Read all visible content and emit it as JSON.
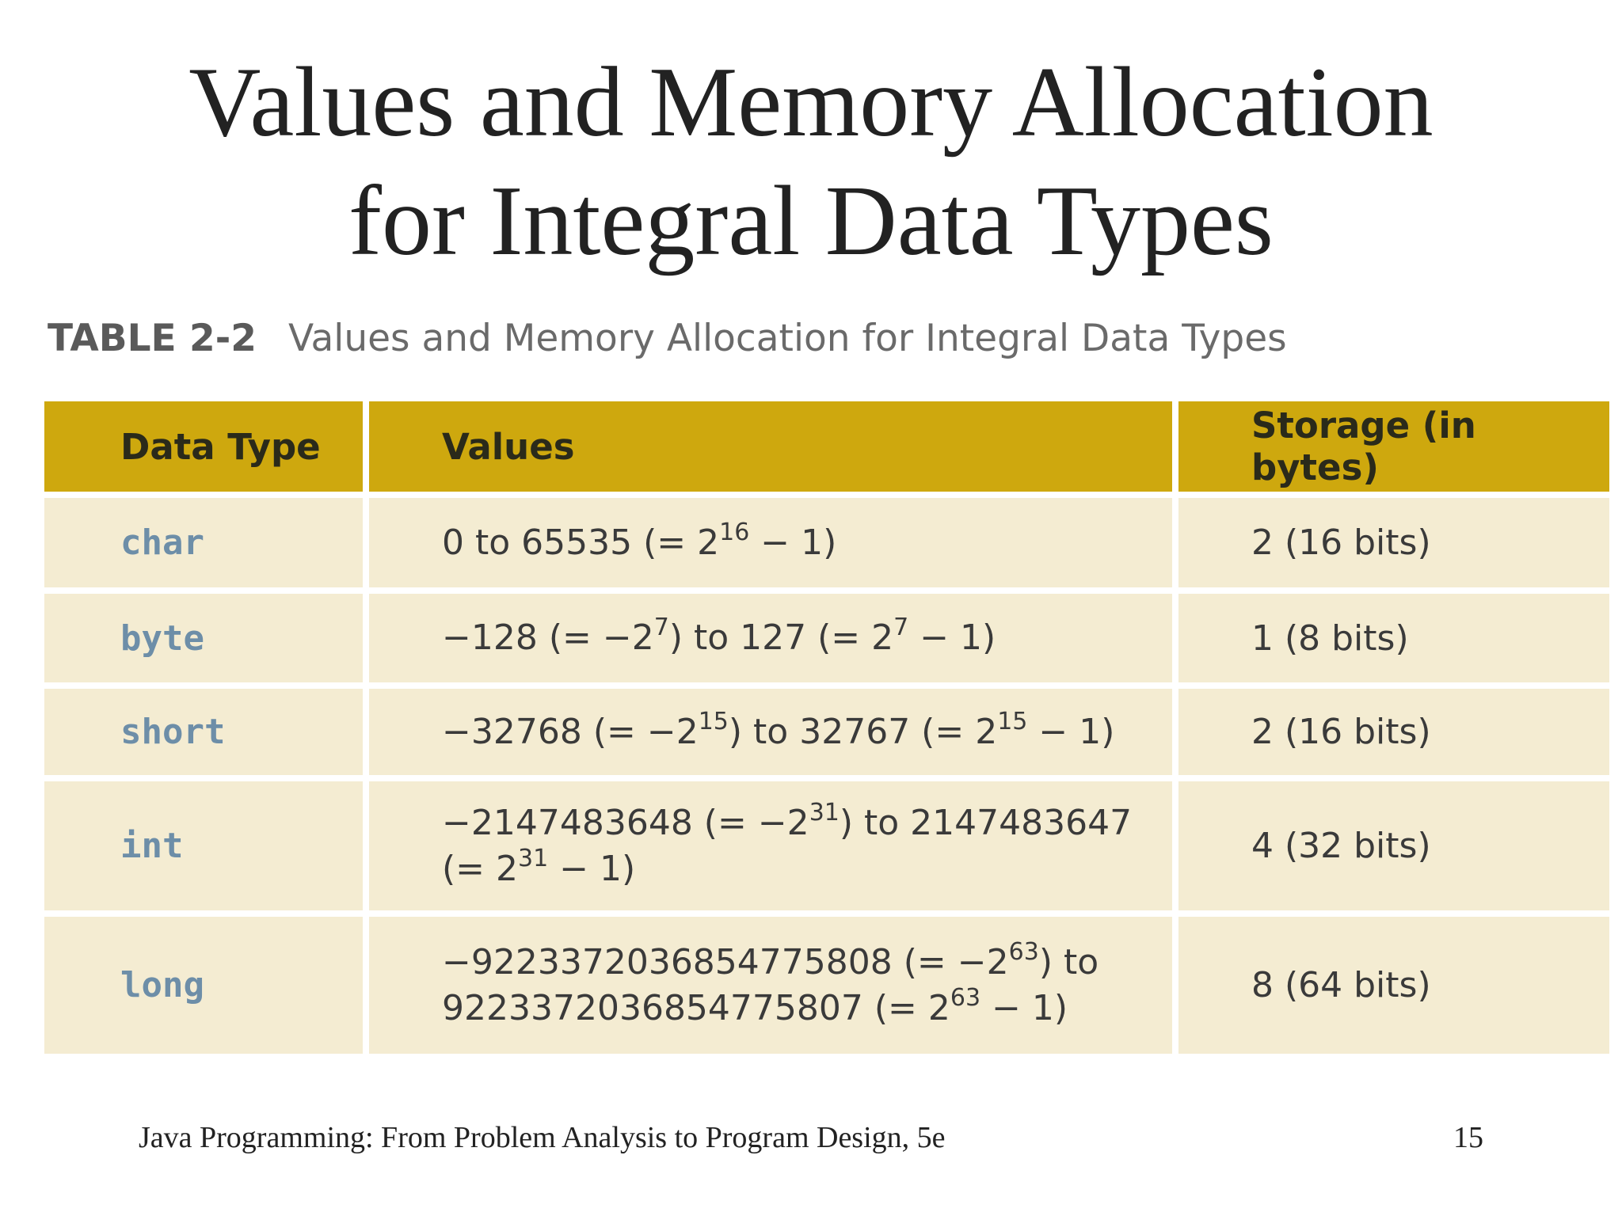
{
  "title": {
    "line1": "Values and Memory Allocation",
    "line2": "for Integral Data Types"
  },
  "caption": {
    "label": "TABLE 2-2",
    "text": "Values and Memory Allocation for Integral Data Types"
  },
  "table": {
    "headers": [
      "Data Type",
      "Values",
      "Storage (in bytes)"
    ],
    "rows": [
      {
        "type": "char",
        "values": [
          [
            {
              "t": "0 to 65535 (= 2"
            },
            {
              "sup": "16"
            },
            {
              "t": " − 1)"
            }
          ]
        ],
        "storage": "2 (16 bits)"
      },
      {
        "type": "byte",
        "values": [
          [
            {
              "t": "−128 (= −2"
            },
            {
              "sup": "7"
            },
            {
              "t": ") to 127 (= 2"
            },
            {
              "sup": "7"
            },
            {
              "t": " − 1)"
            }
          ]
        ],
        "storage": "1 (8 bits)"
      },
      {
        "type": "short",
        "values": [
          [
            {
              "t": "−32768 (= −2"
            },
            {
              "sup": "15"
            },
            {
              "t": ") to 32767 (= 2"
            },
            {
              "sup": "15"
            },
            {
              "t": " − 1)"
            }
          ]
        ],
        "storage": "2 (16 bits)"
      },
      {
        "type": "int",
        "values": [
          [
            {
              "t": "−2147483648 (= −2"
            },
            {
              "sup": "31"
            },
            {
              "t": ") to 2147483647"
            }
          ],
          [
            {
              "t": "(= 2"
            },
            {
              "sup": "31"
            },
            {
              "t": " − 1)"
            }
          ]
        ],
        "storage": "4 (32 bits)"
      },
      {
        "type": "long",
        "values": [
          [
            {
              "t": "−9223372036854775808 (= −2"
            },
            {
              "sup": "63"
            },
            {
              "t": ") to"
            }
          ],
          [
            {
              "t": "9223372036854775807 (= 2"
            },
            {
              "sup": "63"
            },
            {
              "t": " − 1)"
            }
          ]
        ],
        "storage": "8 (64 bits)"
      }
    ]
  },
  "footer": {
    "left": "Java Programming: From Problem Analysis to Program Design, 5e",
    "page_number": "15"
  },
  "colors": {
    "header_bg": "#cea80e",
    "row_bg": "#f4ecd2",
    "type_text": "#6d8ea8"
  }
}
